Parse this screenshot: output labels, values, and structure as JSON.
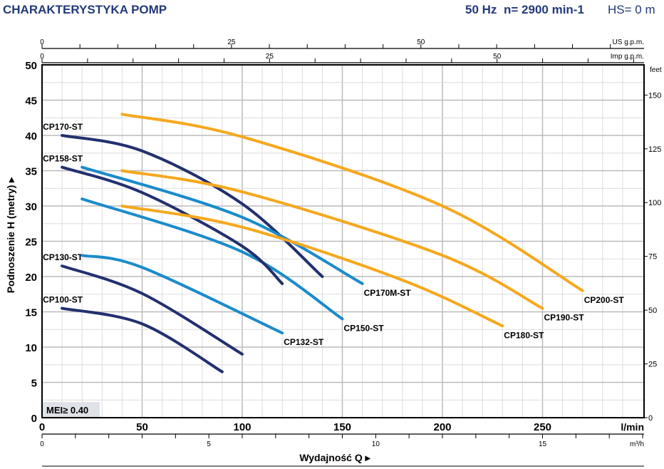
{
  "header": {
    "title": "CHARAKTERYSTYKA POMP",
    "freq": "50 Hz",
    "speed": "n= 2900 min-1",
    "hs": "HS= 0 m"
  },
  "badge": "MEI≥ 0.40",
  "colors": {
    "dark": "#22306e",
    "blue": "#1b8bcb",
    "orange": "#f5a81e"
  },
  "chart_data": {
    "type": "line",
    "title": "CHARAKTERYSTYKA POMP",
    "xlabel": "Wydajność Q",
    "ylabel": "Podnoszenie H (metry)",
    "xunit": "l/min",
    "yunit_right": "feet",
    "xlim": [
      0,
      300
    ],
    "ylim": [
      0,
      50
    ],
    "xticks": [
      0,
      50,
      100,
      150,
      200,
      250
    ],
    "yticks": [
      0,
      5,
      10,
      15,
      20,
      25,
      30,
      35,
      40,
      45,
      50
    ],
    "feet_ticks": [
      0,
      25,
      50,
      75,
      100,
      125,
      150
    ],
    "us_gpm_ticks": [
      0,
      25,
      50
    ],
    "us_gpm_label": "US g.p.m.",
    "imp_gpm_ticks": [
      0,
      25,
      50
    ],
    "imp_gpm_label": "Imp g.p.m.",
    "m3h_ticks": [
      0,
      5,
      10,
      15
    ],
    "m3h_label": "m³/h",
    "grid": true,
    "series": [
      {
        "name": "CP100-ST",
        "color": "dark",
        "points": [
          [
            10,
            15.5
          ],
          [
            50,
            13.3
          ],
          [
            90,
            6.5
          ]
        ]
      },
      {
        "name": "CP130-ST",
        "color": "dark",
        "points": [
          [
            10,
            21.5
          ],
          [
            50,
            17.6
          ],
          [
            100,
            9
          ]
        ]
      },
      {
        "name": "CP132-ST",
        "color": "blue",
        "points": [
          [
            20,
            23
          ],
          [
            50,
            21.3
          ],
          [
            120,
            12
          ]
        ]
      },
      {
        "name": "CP150-ST",
        "color": "blue",
        "points": [
          [
            20,
            31
          ],
          [
            100,
            23.5
          ],
          [
            150,
            14
          ]
        ]
      },
      {
        "name": "CP158-ST",
        "color": "dark",
        "points": [
          [
            10,
            35.5
          ],
          [
            50,
            31.9
          ],
          [
            100,
            24.3
          ],
          [
            120,
            19
          ]
        ]
      },
      {
        "name": "CP170-ST",
        "color": "dark",
        "points": [
          [
            10,
            40
          ],
          [
            50,
            37.8
          ],
          [
            100,
            30.3
          ],
          [
            140,
            20
          ]
        ]
      },
      {
        "name": "CP170M-ST",
        "color": "blue",
        "points": [
          [
            20,
            35.5
          ],
          [
            100,
            28.4
          ],
          [
            160,
            19
          ]
        ]
      },
      {
        "name": "CP180-ST",
        "color": "orange",
        "points": [
          [
            40,
            30
          ],
          [
            100,
            27
          ],
          [
            180,
            19.5
          ],
          [
            230,
            13
          ]
        ]
      },
      {
        "name": "CP190-ST",
        "color": "orange",
        "points": [
          [
            40,
            35
          ],
          [
            100,
            32
          ],
          [
            200,
            23
          ],
          [
            250,
            15.5
          ]
        ]
      },
      {
        "name": "CP200-ST",
        "color": "orange",
        "points": [
          [
            40,
            43
          ],
          [
            100,
            39.8
          ],
          [
            200,
            30
          ],
          [
            270,
            18
          ]
        ]
      }
    ]
  }
}
